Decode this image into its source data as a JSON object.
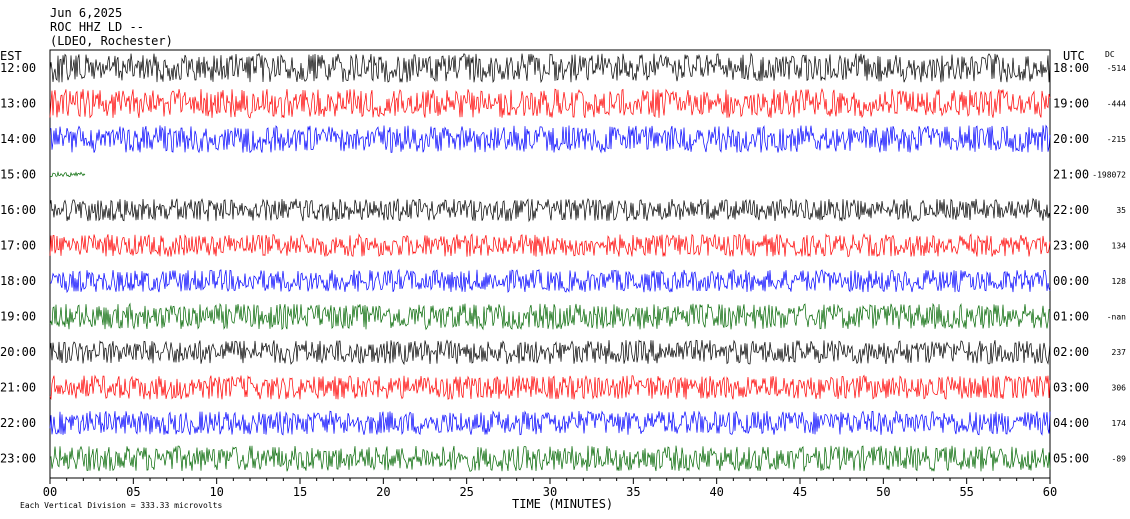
{
  "header": {
    "date": "Jun 6,2025",
    "station": "ROC HHZ LD --",
    "location": "(LDEO, Rochester)"
  },
  "labels": {
    "left_tz": "EST",
    "right_tz": "UTC",
    "dc": "DC",
    "xlabel": "TIME (MINUTES)",
    "footer": "Each Vertical Division =  333.33 microvolts"
  },
  "chart_data": {
    "type": "line",
    "xlabel": "TIME (MINUTES)",
    "xlim": [
      0,
      60
    ],
    "x_ticks": [
      "00",
      "05",
      "10",
      "15",
      "20",
      "25",
      "30",
      "35",
      "40",
      "45",
      "50",
      "55",
      "60"
    ],
    "rows": [
      {
        "est": "12:00",
        "utc": "18:00",
        "dc": "-514",
        "color": "black",
        "amp": 0.9
      },
      {
        "est": "13:00",
        "utc": "19:00",
        "dc": "-444",
        "color": "red",
        "amp": 0.9
      },
      {
        "est": "14:00",
        "utc": "20:00",
        "dc": "-215",
        "color": "blue",
        "amp": 0.85
      },
      {
        "est": "15:00",
        "utc": "21:00",
        "dc": "-198072",
        "color": "green",
        "amp": 0.15
      },
      {
        "est": "16:00",
        "utc": "22:00",
        "dc": "35",
        "color": "black",
        "amp": 0.7
      },
      {
        "est": "17:00",
        "utc": "23:00",
        "dc": "134",
        "color": "red",
        "amp": 0.7
      },
      {
        "est": "18:00",
        "utc": "00:00",
        "dc": "128",
        "color": "blue",
        "amp": 0.7
      },
      {
        "est": "19:00",
        "utc": "01:00",
        "dc": "-nan",
        "color": "green",
        "amp": 0.8
      },
      {
        "est": "20:00",
        "utc": "02:00",
        "dc": "237",
        "color": "black",
        "amp": 0.75
      },
      {
        "est": "21:00",
        "utc": "03:00",
        "dc": "306",
        "color": "red",
        "amp": 0.75
      },
      {
        "est": "22:00",
        "utc": "04:00",
        "dc": "174",
        "color": "blue",
        "amp": 0.75
      },
      {
        "est": "23:00",
        "utc": "05:00",
        "dc": "-89",
        "color": "green",
        "amp": 0.8
      }
    ],
    "colors": {
      "black": "#000000",
      "red": "#ff0000",
      "blue": "#0000ff",
      "green": "#006600"
    },
    "grid": false
  }
}
